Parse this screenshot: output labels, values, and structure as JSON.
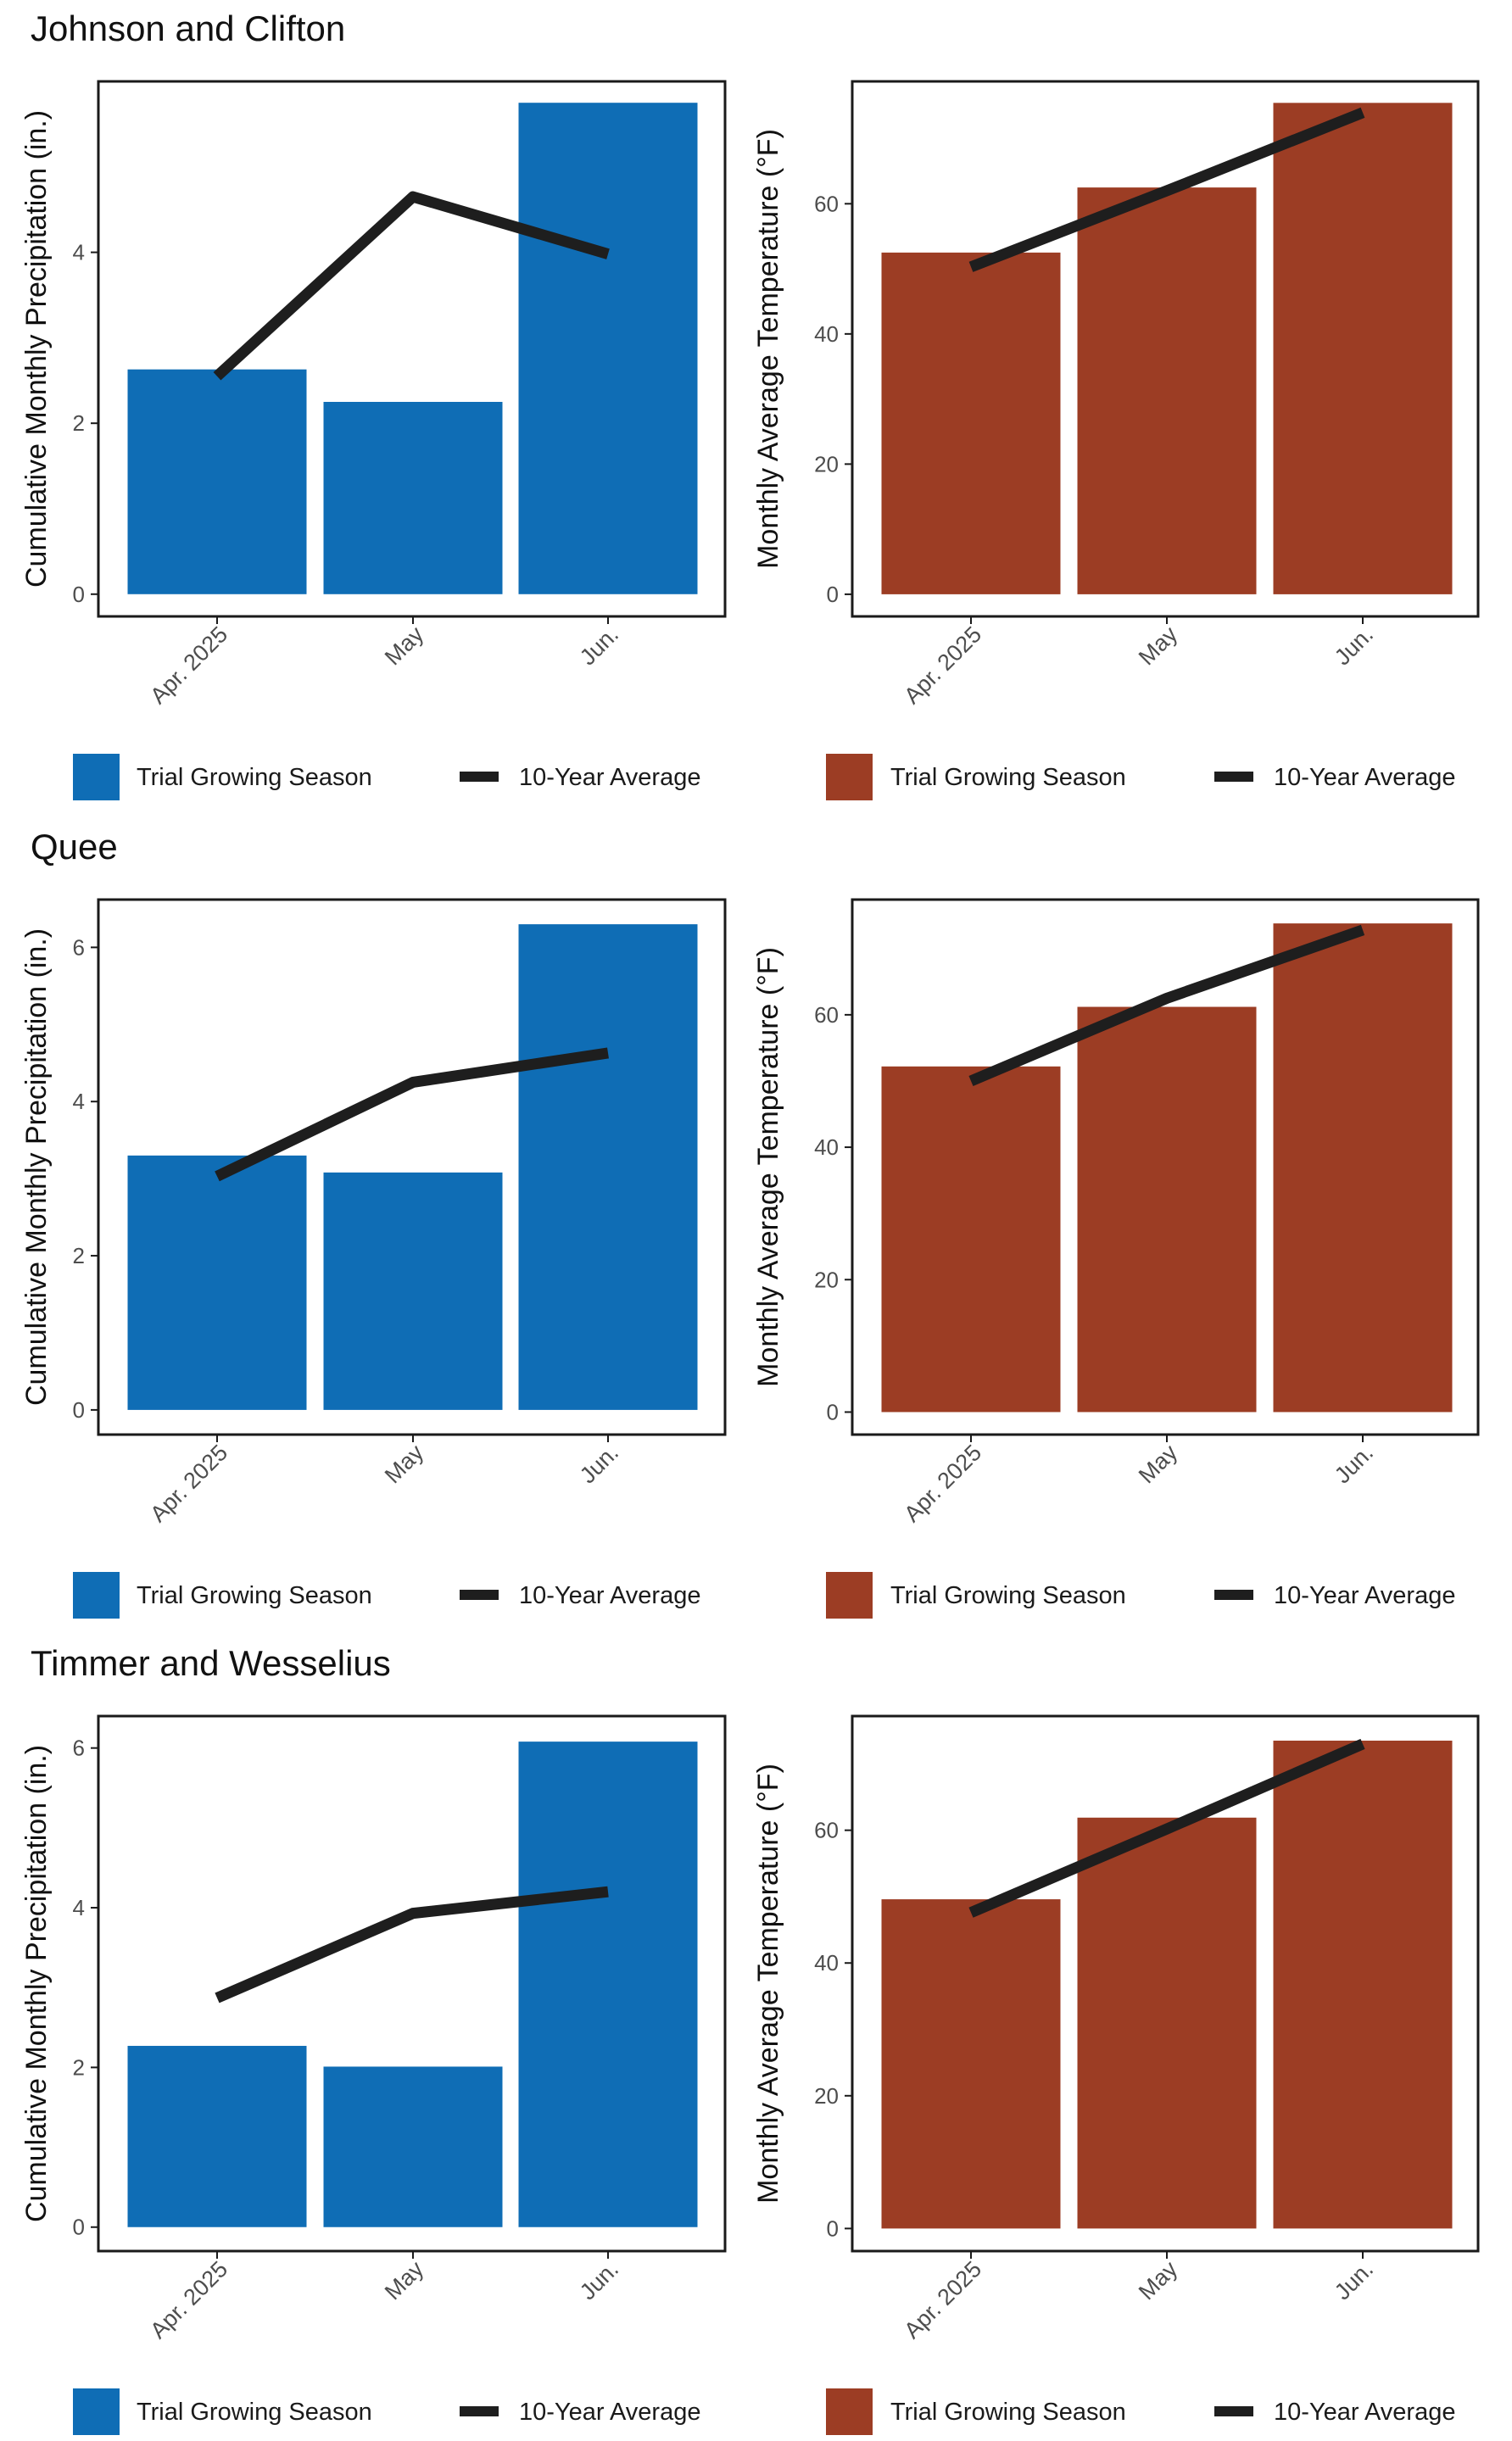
{
  "colors": {
    "precip_bar": "#0F6DB5",
    "temp_bar": "#9C3D24",
    "avg_line": "#1E1E1E",
    "text": "#1a1a1a",
    "tick_text": "#4d4d4d",
    "panel_border": "#1a1a1a",
    "background": "#ffffff"
  },
  "legend": {
    "trial_label": "Trial Growing Season",
    "avg_label": "10-Year Average"
  },
  "chart_data": [
    {
      "site": "Johnson and Clifton",
      "panels": [
        {
          "type": "bar",
          "variable": "precipitation",
          "categories": [
            "Apr. 2025",
            "May",
            "Jun."
          ],
          "series": [
            {
              "name": "Trial Growing Season",
              "type": "bar",
              "values": [
                2.63,
                2.25,
                5.75
              ]
            },
            {
              "name": "10-Year Average",
              "type": "line",
              "values": [
                2.55,
                4.65,
                3.98
              ]
            }
          ],
          "ylabel": "Cumulative Monthly Precipitation (in.)",
          "yticks": [
            0,
            2,
            4
          ],
          "ylim": [
            -0.26,
            6.0
          ],
          "grid": false,
          "legend_position": "bottom"
        },
        {
          "type": "bar",
          "variable": "temperature",
          "categories": [
            "Apr. 2025",
            "May",
            "Jun."
          ],
          "series": [
            {
              "name": "Trial Growing Season",
              "type": "bar",
              "values": [
                52.5,
                62.5,
                75.5
              ]
            },
            {
              "name": "10-Year Average",
              "type": "line",
              "values": [
                50.3,
                62.0,
                74.0
              ]
            }
          ],
          "ylabel": "Monthly Average Temperature (°F)",
          "yticks": [
            0,
            20,
            40,
            60
          ],
          "ylim": [
            -3.4,
            78.8
          ],
          "grid": false,
          "legend_position": "bottom"
        }
      ]
    },
    {
      "site": "Quee",
      "panels": [
        {
          "type": "bar",
          "variable": "precipitation",
          "categories": [
            "Apr. 2025",
            "May",
            "Jun."
          ],
          "series": [
            {
              "name": "Trial Growing Season",
              "type": "bar",
              "values": [
                3.3,
                3.08,
                6.3
              ]
            },
            {
              "name": "10-Year Average",
              "type": "line",
              "values": [
                3.03,
                4.25,
                4.63
              ]
            }
          ],
          "ylabel": "Cumulative Monthly Precipitation (in.)",
          "yticks": [
            0,
            2,
            4,
            6
          ],
          "ylim": [
            -0.32,
            6.62
          ],
          "grid": false,
          "legend_position": "bottom"
        },
        {
          "type": "bar",
          "variable": "temperature",
          "categories": [
            "Apr. 2025",
            "May",
            "Jun."
          ],
          "series": [
            {
              "name": "Trial Growing Season",
              "type": "bar",
              "values": [
                52.2,
                61.2,
                73.8
              ]
            },
            {
              "name": "10-Year Average",
              "type": "line",
              "values": [
                50.0,
                62.5,
                72.8
              ]
            }
          ],
          "ylabel": "Monthly Average Temperature (°F)",
          "yticks": [
            0,
            20,
            40,
            60
          ],
          "ylim": [
            -3.4,
            77.4
          ],
          "grid": false,
          "legend_position": "bottom"
        }
      ]
    },
    {
      "site": "Timmer and Wesselius",
      "panels": [
        {
          "type": "bar",
          "variable": "precipitation",
          "categories": [
            "Apr. 2025",
            "May",
            "Jun."
          ],
          "series": [
            {
              "name": "Trial Growing Season",
              "type": "bar",
              "values": [
                2.27,
                2.01,
                6.08
              ]
            },
            {
              "name": "10-Year Average",
              "type": "line",
              "values": [
                2.87,
                3.93,
                4.2
              ]
            }
          ],
          "ylabel": "Cumulative Monthly Precipitation (in.)",
          "yticks": [
            0,
            2,
            4,
            6
          ],
          "ylim": [
            -0.3,
            6.4
          ],
          "grid": false,
          "legend_position": "bottom"
        },
        {
          "type": "bar",
          "variable": "temperature",
          "categories": [
            "Apr. 2025",
            "May",
            "Jun."
          ],
          "series": [
            {
              "name": "Trial Growing Season",
              "type": "bar",
              "values": [
                49.6,
                61.9,
                73.5
              ]
            },
            {
              "name": "10-Year Average",
              "type": "line",
              "values": [
                47.6,
                60.2,
                73.0
              ]
            }
          ],
          "ylabel": "Monthly Average Temperature (°F)",
          "yticks": [
            0,
            20,
            40,
            60
          ],
          "ylim": [
            -3.4,
            77.2
          ],
          "grid": false,
          "legend_position": "bottom"
        }
      ]
    }
  ]
}
